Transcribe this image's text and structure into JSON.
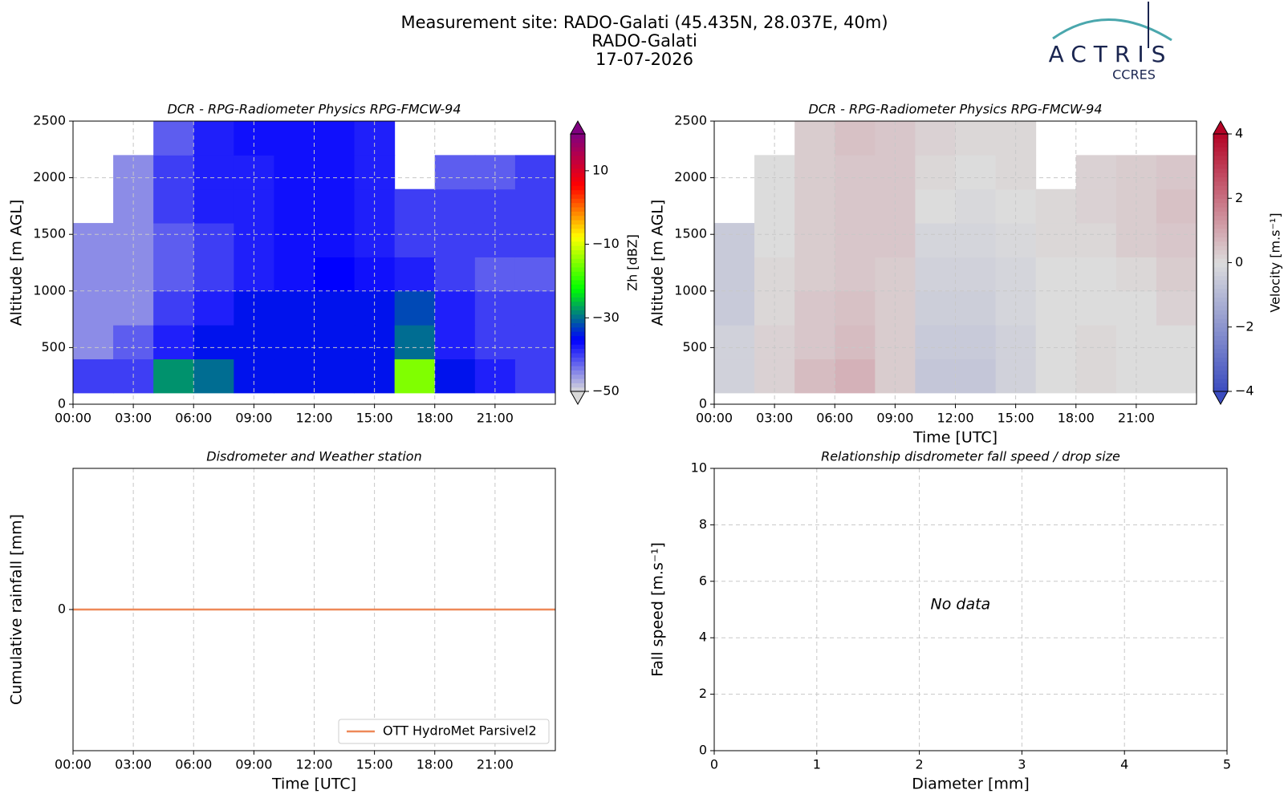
{
  "header": {
    "lines": [
      "Measurement site: RADO-Galati (45.435N, 28.037E, 40m)",
      "RADO-Galati",
      "17-07-2026"
    ],
    "logo": "ACTRIS",
    "logo_sub": "CCRES"
  },
  "chart_data": [
    {
      "type": "heatmap",
      "title": "DCR - RPG-Radiometer Physics RPG-FMCW-94",
      "ylabel": "Altitude [m AGL]",
      "x_edges": [
        0,
        2,
        4,
        6,
        8,
        10,
        12,
        14,
        16,
        18,
        20,
        22,
        24
      ],
      "y_edges": [
        100,
        400,
        700,
        1000,
        1300,
        1600,
        1900,
        2200,
        2500
      ],
      "z": [
        [
          -40,
          -40,
          -28,
          -30,
          -35,
          -35,
          -35,
          -35,
          -15,
          -35,
          -38,
          -40
        ],
        [
          -45,
          -42,
          -38,
          -35,
          -35,
          -35,
          -35,
          -35,
          -30,
          -38,
          -40,
          -40
        ],
        [
          -45,
          -45,
          -40,
          -38,
          -35,
          -35,
          -35,
          -35,
          -32,
          -38,
          -40,
          -40
        ],
        [
          -45,
          -45,
          -42,
          -40,
          -38,
          -37,
          -36,
          -37,
          -38,
          -40,
          -42,
          -42
        ],
        [
          -45,
          -45,
          -42,
          -40,
          -38,
          -37,
          -37,
          -38,
          -40,
          -40,
          -40,
          -40
        ],
        [
          null,
          -45,
          -40,
          -38,
          -38,
          -37,
          -37,
          -38,
          -40,
          -40,
          -40,
          -40
        ],
        [
          null,
          -45,
          -40,
          -38,
          -38,
          -37,
          -37,
          -38,
          null,
          -42,
          -42,
          -40
        ],
        [
          null,
          null,
          -42,
          -38,
          -37,
          -37,
          -37,
          -38,
          null,
          null,
          null,
          null
        ]
      ],
      "xlim": [
        0,
        24
      ],
      "ylim": [
        0,
        2500
      ],
      "xticks": [
        {
          "value": 0,
          "label": "00:00"
        },
        {
          "value": 3,
          "label": "03:00"
        },
        {
          "value": 6,
          "label": "06:00"
        },
        {
          "value": 9,
          "label": "09:00"
        },
        {
          "value": 12,
          "label": "12:00"
        },
        {
          "value": 15,
          "label": "15:00"
        },
        {
          "value": 18,
          "label": "18:00"
        },
        {
          "value": 21,
          "label": "21:00"
        }
      ],
      "yticks": [
        0,
        500,
        1000,
        1500,
        2000,
        2500
      ],
      "grid": true,
      "colorbar": {
        "label": "Zh [dBZ]",
        "vlim": [
          -50,
          20
        ],
        "colors": [
          "#d9d9d9",
          "#0000ff",
          "#00ff00",
          "#ffff00",
          "#ff0000",
          "#800080"
        ],
        "ticks": [
          {
            "value": -50,
            "label": "−50"
          },
          {
            "value": -30,
            "label": "−30"
          },
          {
            "value": -10,
            "label": "−10"
          },
          10
        ]
      }
    },
    {
      "type": "heatmap",
      "title": "DCR - RPG-Radiometer Physics RPG-FMCW-94",
      "ylabel": "Altitude [m AGL]",
      "xlabel": "Time [UTC]",
      "x_edges": [
        0,
        2,
        4,
        6,
        8,
        10,
        12,
        14,
        16,
        18,
        20,
        22,
        24
      ],
      "y_edges": [
        100,
        400,
        700,
        1000,
        1300,
        1600,
        1900,
        2200,
        2500
      ],
      "z": [
        [
          -0.3,
          0.2,
          0.6,
          0.8,
          0.3,
          -0.6,
          -0.6,
          -0.3,
          0,
          0.1,
          0,
          0
        ],
        [
          -0.3,
          0.2,
          0.4,
          0.6,
          0.3,
          -0.5,
          -0.5,
          -0.3,
          0,
          0.1,
          0,
          0
        ],
        [
          -0.5,
          0.1,
          0.4,
          0.5,
          0.3,
          -0.4,
          -0.4,
          -0.2,
          0,
          0,
          0,
          0.2
        ],
        [
          -0.5,
          0.1,
          0.3,
          0.4,
          0.3,
          -0.3,
          -0.3,
          -0.2,
          0,
          0,
          0.1,
          0.3
        ],
        [
          -0.5,
          0,
          0.3,
          0.4,
          0.4,
          -0.2,
          -0.2,
          -0.1,
          0.1,
          0.1,
          0.3,
          0.4
        ],
        [
          null,
          0,
          0.3,
          0.4,
          0.4,
          0,
          -0.1,
          0,
          0.1,
          0.2,
          0.3,
          0.5
        ],
        [
          null,
          0,
          0.3,
          0.4,
          0.4,
          0.1,
          0,
          0.1,
          null,
          0.2,
          0.3,
          0.4
        ],
        [
          null,
          null,
          0.3,
          0.5,
          0.4,
          0.2,
          0.1,
          0.1,
          null,
          null,
          null,
          null
        ]
      ],
      "xlim": [
        0,
        24
      ],
      "ylim": [
        0,
        2500
      ],
      "xticks": [
        {
          "value": 0,
          "label": "00:00"
        },
        {
          "value": 3,
          "label": "03:00"
        },
        {
          "value": 6,
          "label": "06:00"
        },
        {
          "value": 9,
          "label": "09:00"
        },
        {
          "value": 12,
          "label": "12:00"
        },
        {
          "value": 15,
          "label": "15:00"
        },
        {
          "value": 18,
          "label": "18:00"
        },
        {
          "value": 21,
          "label": "21:00"
        }
      ],
      "yticks": [
        0,
        500,
        1000,
        1500,
        2000,
        2500
      ],
      "grid": true,
      "colorbar": {
        "label": "Velocity [m.s⁻¹]",
        "vlim": [
          -4,
          4
        ],
        "colors": [
          "#3b4cc0",
          "#dcdcdc",
          "#b40426"
        ],
        "ticks": [
          {
            "value": -4,
            "label": "−4"
          },
          {
            "value": -2,
            "label": "−2"
          },
          0,
          2,
          4
        ]
      }
    },
    {
      "type": "line",
      "title": "Disdrometer and Weather station",
      "ylabel": "Cumulative rainfall [mm]",
      "xlabel": "Time [UTC]",
      "x": [
        0,
        24
      ],
      "series": [
        {
          "name": "OTT HydroMet Parsivel2",
          "color": "#ee8959",
          "values": [
            0,
            0
          ]
        }
      ],
      "xlim": [
        0,
        24
      ],
      "ylim": [
        -1,
        1
      ],
      "xticks": [
        {
          "value": 0,
          "label": "00:00"
        },
        {
          "value": 3,
          "label": "03:00"
        },
        {
          "value": 6,
          "label": "06:00"
        },
        {
          "value": 9,
          "label": "09:00"
        },
        {
          "value": 12,
          "label": "12:00"
        },
        {
          "value": 15,
          "label": "15:00"
        },
        {
          "value": 18,
          "label": "18:00"
        },
        {
          "value": 21,
          "label": "21:00"
        }
      ],
      "yticks": [
        0
      ],
      "grid": true,
      "legend": "lower right"
    },
    {
      "type": "scatter",
      "title": "Relationship disdrometer fall speed / drop size",
      "ylabel": "Fall speed [m.s⁻¹]",
      "xlabel": "Diameter [mm]",
      "annotation": "No data",
      "xlim": [
        0,
        5
      ],
      "ylim": [
        0,
        10
      ],
      "xticks": [
        0,
        1,
        2,
        3,
        4,
        5
      ],
      "yticks": [
        0,
        2,
        4,
        6,
        8,
        10
      ],
      "grid": true
    }
  ]
}
